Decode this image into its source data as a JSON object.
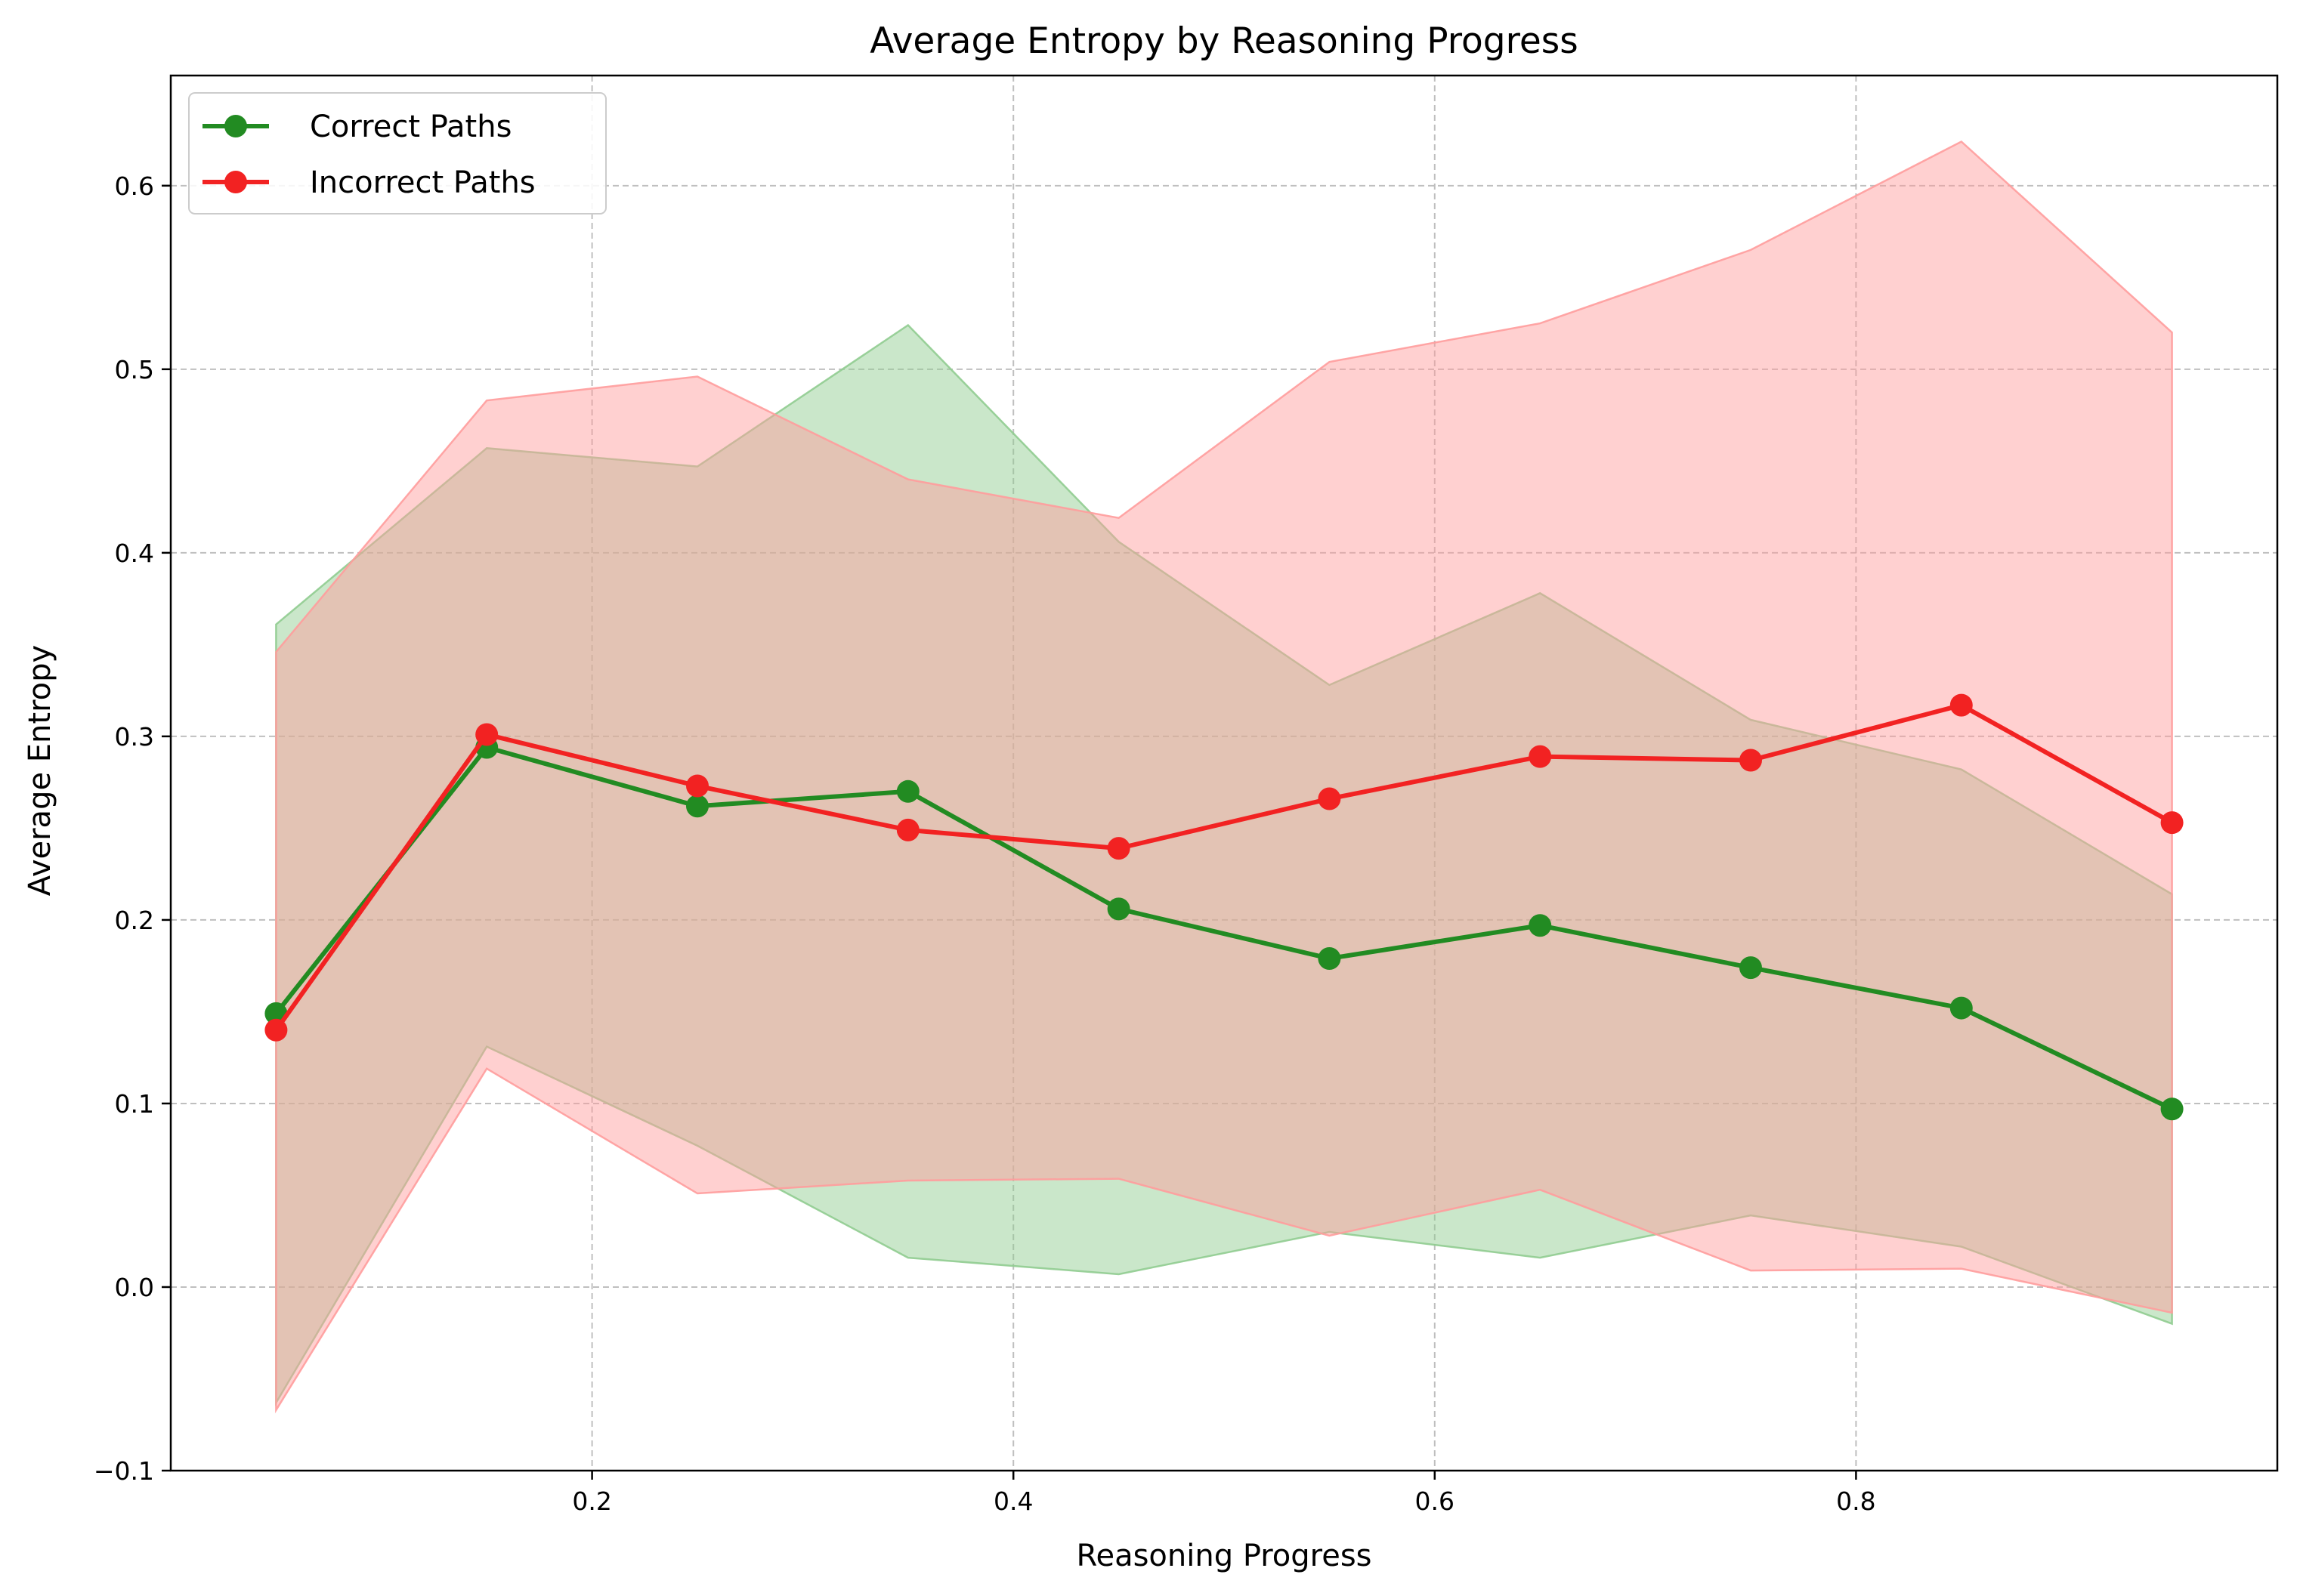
{
  "chart_data": {
    "type": "line",
    "title": "Average Entropy by Reasoning Progress",
    "xlabel": "Reasoning Progress",
    "ylabel": "Average Entropy",
    "xlim": [
      0.0,
      1.0
    ],
    "ylim": [
      -0.1,
      0.66
    ],
    "xticks": [
      0.2,
      0.4,
      0.6,
      0.8
    ],
    "xtick_labels": [
      "0.2",
      "0.4",
      "0.6",
      "0.8"
    ],
    "yticks": [
      -0.1,
      0.0,
      0.1,
      0.2,
      0.3,
      0.4,
      0.5,
      0.6
    ],
    "ytick_labels": [
      "−0.1",
      "0.0",
      "0.1",
      "0.2",
      "0.3",
      "0.4",
      "0.5",
      "0.6"
    ],
    "grid": true,
    "legend_position": "top-left",
    "x": [
      0.05,
      0.15,
      0.25,
      0.35,
      0.45,
      0.55,
      0.65,
      0.75,
      0.85,
      0.95
    ],
    "series": [
      {
        "name": "Correct Paths",
        "color": "#228b22",
        "band_color": "#90cc90",
        "values": [
          0.149,
          0.294,
          0.262,
          0.27,
          0.206,
          0.179,
          0.197,
          0.174,
          0.152,
          0.097
        ],
        "upper": [
          0.361,
          0.457,
          0.447,
          0.524,
          0.406,
          0.328,
          0.378,
          0.309,
          0.282,
          0.214
        ],
        "lower": [
          -0.063,
          0.131,
          0.077,
          0.016,
          0.007,
          0.03,
          0.016,
          0.039,
          0.022,
          -0.02
        ]
      },
      {
        "name": "Incorrect Paths",
        "color": "#f22222",
        "band_color": "#ff9c9c",
        "values": [
          0.14,
          0.301,
          0.273,
          0.249,
          0.239,
          0.266,
          0.289,
          0.287,
          0.317,
          0.253
        ],
        "upper": [
          0.346,
          0.483,
          0.496,
          0.44,
          0.419,
          0.504,
          0.525,
          0.565,
          0.624,
          0.52
        ],
        "lower": [
          -0.067,
          0.119,
          0.051,
          0.058,
          0.059,
          0.028,
          0.053,
          0.009,
          0.01,
          -0.014
        ]
      }
    ]
  }
}
